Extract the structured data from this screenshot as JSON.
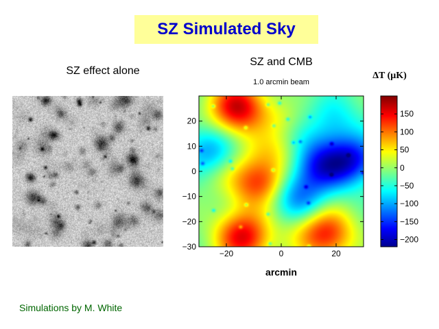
{
  "slide": {
    "title": "SZ Simulated Sky",
    "credit": "Simulations by M. White",
    "colors": {
      "title_bg": "#ffff99",
      "title_text": "#0000cc",
      "credit_text": "#006600"
    }
  },
  "left_panel": {
    "label": "SZ effect alone"
  },
  "right_panel": {
    "label": "SZ and CMB",
    "subtitle": "1.0 arcmin beam",
    "xlabel": "arcmin"
  },
  "chart_data": [
    {
      "type": "heatmap",
      "title": "SZ and CMB",
      "subtitle": "1.0 arcmin beam",
      "xlabel": "arcmin",
      "ylabel": "",
      "xlim": [
        -30,
        30
      ],
      "ylim": [
        -30,
        30
      ],
      "xticks": [
        -20,
        0,
        20
      ],
      "yticks": [
        -30,
        -20,
        -10,
        0,
        10,
        20
      ],
      "colormap": "jet",
      "features": [
        {
          "x": -16,
          "y": 26,
          "value": 170
        },
        {
          "x": -14,
          "y": -26,
          "value": 170
        },
        {
          "x": 16,
          "y": -25,
          "value": 150
        },
        {
          "x": -9,
          "y": -4,
          "value": 100
        },
        {
          "x": -3,
          "y": 7,
          "value": 60
        },
        {
          "x": 26,
          "y": 4,
          "value": -150
        },
        {
          "x": 14,
          "y": 2,
          "value": -120
        },
        {
          "x": 6,
          "y": -10,
          "value": -100
        },
        {
          "x": -26,
          "y": 9,
          "value": -90
        },
        {
          "x": 18,
          "y": 20,
          "value": -60
        }
      ]
    },
    {
      "type": "colorbar",
      "title": "ΔT (μK)",
      "range": [
        -220,
        200
      ],
      "ticks": [
        150,
        100,
        50,
        0,
        -50,
        -100,
        -150,
        -200
      ],
      "tick_labels": [
        "150",
        "100",
        "50",
        "0",
        "−50",
        "−100",
        "−150",
        "−200"
      ]
    }
  ]
}
